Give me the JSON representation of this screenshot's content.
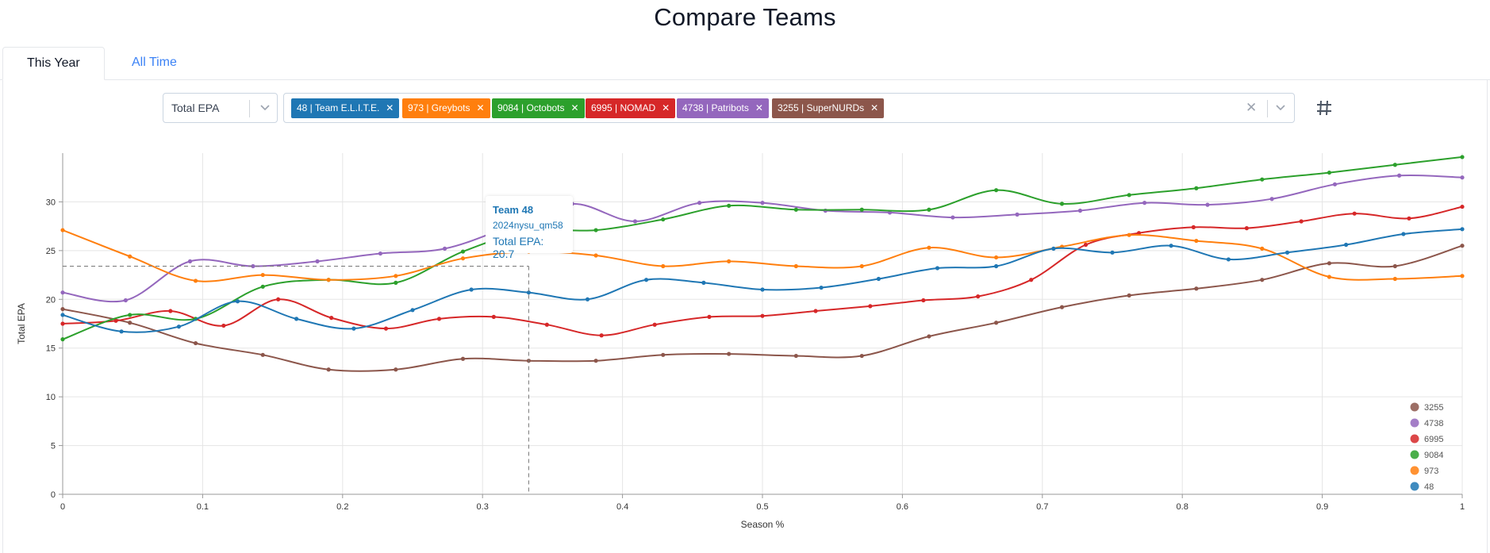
{
  "page": {
    "title": "Compare Teams"
  },
  "tabs": [
    {
      "label": "This Year",
      "active": true
    },
    {
      "label": "All Time",
      "active": false
    }
  ],
  "metric_select": {
    "value": "Total EPA"
  },
  "team_select": {
    "chips": [
      {
        "label": "48 | Team E.L.I.T.E.",
        "color": "#1f77b4"
      },
      {
        "label": "973 | Greybots",
        "color": "#ff7f0e"
      },
      {
        "label": "9084 | Octobots",
        "color": "#2ca02c"
      },
      {
        "label": "6995 | NOMAD",
        "color": "#d62728"
      },
      {
        "label": "4738 | Patribots",
        "color": "#9467bd"
      },
      {
        "label": "3255 | SuperNURDs",
        "color": "#8c564b"
      }
    ],
    "clear_icon": "close-icon",
    "dropdown_icon": "chevron-down-icon"
  },
  "toggle_icon": "hash-icon",
  "tooltip": {
    "title": "Team 48",
    "match": "2024nysu_qm58",
    "value_text": "Total EPA: 20.7"
  },
  "chart_data": {
    "type": "line",
    "xlabel": "Season %",
    "ylabel": "Total EPA",
    "xlim": [
      0,
      1
    ],
    "ylim": [
      0,
      35
    ],
    "xticks": [
      0,
      0.1,
      0.2,
      0.3,
      0.4,
      0.5,
      0.6,
      0.7,
      0.8,
      0.9,
      1
    ],
    "yticks": [
      0,
      5,
      10,
      15,
      20,
      25,
      30
    ],
    "grid": true,
    "legend_position": "bottom-right",
    "crosshair": {
      "x": 0.333,
      "y": 23.4
    },
    "series": [
      {
        "name": "48",
        "color": "#1f77b4",
        "x": [
          0,
          0.042,
          0.083,
          0.125,
          0.167,
          0.208,
          0.25,
          0.292,
          0.333,
          0.375,
          0.417,
          0.458,
          0.5,
          0.542,
          0.583,
          0.625,
          0.667,
          0.708,
          0.75,
          0.792,
          0.833,
          0.875,
          0.917,
          0.958,
          1
        ],
        "values": [
          18.4,
          16.7,
          17.2,
          19.8,
          18.0,
          17.0,
          18.9,
          21.0,
          20.7,
          20.0,
          22.0,
          21.7,
          21.0,
          21.2,
          22.1,
          23.2,
          23.4,
          25.2,
          24.8,
          25.5,
          24.1,
          24.8,
          25.6,
          26.7,
          27.2
        ]
      },
      {
        "name": "973",
        "color": "#ff7f0e",
        "x": [
          0,
          0.048,
          0.095,
          0.143,
          0.19,
          0.238,
          0.286,
          0.333,
          0.381,
          0.429,
          0.476,
          0.524,
          0.571,
          0.619,
          0.667,
          0.714,
          0.762,
          0.81,
          0.857,
          0.905,
          0.952,
          1
        ],
        "values": [
          27.1,
          24.4,
          21.9,
          22.5,
          22.0,
          22.4,
          24.2,
          24.9,
          24.5,
          23.4,
          23.9,
          23.4,
          23.4,
          25.3,
          24.3,
          25.4,
          26.6,
          26.0,
          25.2,
          22.3,
          22.1,
          22.4
        ]
      },
      {
        "name": "9084",
        "color": "#2ca02c",
        "x": [
          0,
          0.048,
          0.095,
          0.143,
          0.19,
          0.238,
          0.286,
          0.333,
          0.381,
          0.429,
          0.476,
          0.524,
          0.571,
          0.619,
          0.667,
          0.714,
          0.762,
          0.81,
          0.857,
          0.905,
          0.952,
          1
        ],
        "values": [
          15.9,
          18.4,
          18.0,
          21.3,
          22.0,
          21.7,
          24.9,
          27.0,
          27.1,
          28.2,
          29.6,
          29.2,
          29.2,
          29.2,
          31.2,
          29.8,
          30.7,
          31.4,
          32.3,
          33.0,
          33.8,
          34.6
        ]
      },
      {
        "name": "6995",
        "color": "#d62728",
        "x": [
          0,
          0.038,
          0.077,
          0.115,
          0.154,
          0.192,
          0.231,
          0.269,
          0.308,
          0.346,
          0.385,
          0.423,
          0.462,
          0.5,
          0.538,
          0.577,
          0.615,
          0.654,
          0.692,
          0.731,
          0.769,
          0.808,
          0.846,
          0.885,
          0.923,
          0.962,
          1
        ],
        "values": [
          17.5,
          17.8,
          18.8,
          17.3,
          20.0,
          18.1,
          17.0,
          18.0,
          18.2,
          17.4,
          16.3,
          17.4,
          18.2,
          18.3,
          18.8,
          19.3,
          19.9,
          20.3,
          22.0,
          25.6,
          26.8,
          27.4,
          27.3,
          28.0,
          28.8,
          28.3,
          29.5
        ]
      },
      {
        "name": "4738",
        "color": "#9467bd",
        "x": [
          0,
          0.045,
          0.091,
          0.136,
          0.182,
          0.227,
          0.273,
          0.318,
          0.364,
          0.409,
          0.455,
          0.5,
          0.545,
          0.591,
          0.636,
          0.682,
          0.727,
          0.773,
          0.818,
          0.864,
          0.909,
          0.955,
          1
        ],
        "values": [
          20.7,
          19.9,
          23.9,
          23.4,
          23.9,
          24.7,
          25.2,
          27.4,
          29.8,
          28.0,
          29.9,
          29.9,
          29.1,
          28.9,
          28.4,
          28.7,
          29.1,
          29.9,
          29.7,
          30.3,
          31.8,
          32.7,
          32.5
        ]
      },
      {
        "name": "3255",
        "color": "#8c564b",
        "x": [
          0,
          0.048,
          0.095,
          0.143,
          0.19,
          0.238,
          0.286,
          0.333,
          0.381,
          0.429,
          0.476,
          0.524,
          0.571,
          0.619,
          0.667,
          0.714,
          0.762,
          0.81,
          0.857,
          0.905,
          0.952,
          1
        ],
        "values": [
          19.0,
          17.6,
          15.5,
          14.3,
          12.8,
          12.8,
          13.9,
          13.7,
          13.7,
          14.3,
          14.4,
          14.2,
          14.2,
          16.2,
          17.6,
          19.2,
          20.4,
          21.1,
          22.0,
          23.7,
          23.4,
          25.5
        ]
      }
    ],
    "legend_order": [
      "3255",
      "4738",
      "6995",
      "9084",
      "973",
      "48"
    ]
  }
}
